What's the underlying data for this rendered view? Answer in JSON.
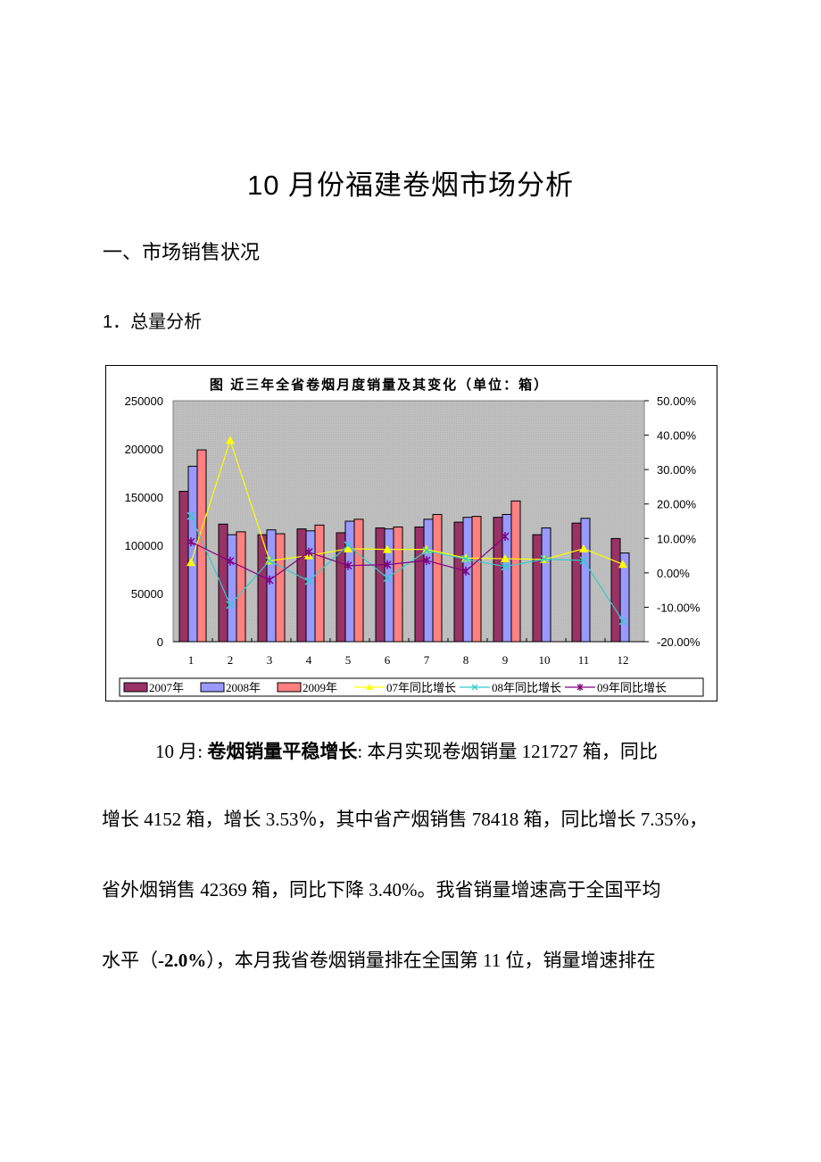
{
  "document": {
    "title": "10 月份福建卷烟市场分析",
    "section_heading": "一、市场销售状况",
    "subsection_heading": "1．总量分析"
  },
  "paragraph": {
    "line1_prefix": "10 月: ",
    "line1_bold": "卷烟销量平稳增长",
    "line1_rest": ": 本月实现卷烟销量 121727 箱，同比",
    "line2": "增长 4152 箱，增长 3.53％，其中省产烟销售 78418 箱，同比增长 7.35%，",
    "line3": "省外烟销售 42369 箱，同比下降 3.40%。我省销量增速高于全国平均",
    "line4_prefix": "水平（",
    "line4_bold": "-2.0%",
    "line4_rest": "），本月我省卷烟销量排在全国第 11 位，销量增速排在"
  },
  "chart_data": {
    "type": "bar",
    "title": "图  近三年全省卷烟月度销量及其变化（单位：箱）",
    "xlabel": "",
    "ylabel": "",
    "categories": [
      "1",
      "2",
      "3",
      "4",
      "5",
      "6",
      "7",
      "8",
      "9",
      "10",
      "11",
      "12"
    ],
    "ylim": [
      0,
      250000
    ],
    "y_ticks": [
      "250000",
      "200000",
      "150000",
      "100000",
      "50000",
      "0"
    ],
    "y2lim": [
      -0.2,
      0.5
    ],
    "y2_ticks": [
      "50.00%",
      "40.00%",
      "30.00%",
      "20.00%",
      "10.00%",
      "0.00%",
      "-10.00%",
      "-20.00%"
    ],
    "grid": false,
    "legend_position": "bottom",
    "series": [
      {
        "name": "2007年",
        "kind": "bar",
        "color": "#993366",
        "values": [
          156000,
          122000,
          111000,
          117000,
          113000,
          118000,
          119000,
          124000,
          129000,
          111000,
          123000,
          107000
        ]
      },
      {
        "name": "2008年",
        "kind": "bar",
        "color": "#9999ff",
        "values": [
          182000,
          111000,
          116000,
          115000,
          125000,
          117000,
          127000,
          129000,
          132000,
          118000,
          128000,
          92000
        ]
      },
      {
        "name": "2009年",
        "kind": "bar",
        "color": "#ff8080",
        "values": [
          199000,
          114000,
          112000,
          121000,
          127000,
          119000,
          132000,
          130000,
          146000,
          null,
          null,
          null
        ]
      },
      {
        "name": "07年同比增长",
        "kind": "line",
        "axis": "right",
        "marker": "triangle",
        "color": "#ffff00",
        "values": [
          0.03,
          0.385,
          0.035,
          0.05,
          0.07,
          0.068,
          0.068,
          0.043,
          0.041,
          0.039,
          0.07,
          0.025
        ]
      },
      {
        "name": "08年同比增长",
        "kind": "line",
        "axis": "right",
        "marker": "x",
        "color": "#33cccc",
        "values": [
          0.165,
          -0.093,
          0.035,
          -0.024,
          0.08,
          -0.015,
          0.064,
          0.04,
          0.018,
          0.04,
          0.036,
          -0.14
        ]
      },
      {
        "name": "09年同比增长",
        "kind": "line",
        "axis": "right",
        "marker": "asterisk",
        "color": "#800080",
        "values": [
          0.09,
          0.034,
          -0.021,
          0.06,
          0.021,
          0.024,
          0.036,
          0.005,
          0.106,
          null,
          null,
          null
        ]
      }
    ]
  }
}
